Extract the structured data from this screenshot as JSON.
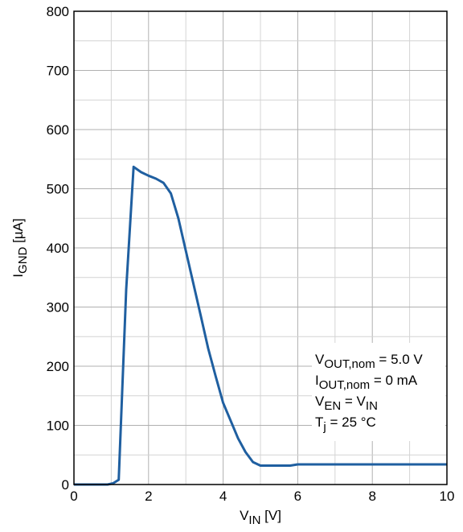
{
  "chart_data": {
    "type": "line",
    "xlabel": {
      "main": "V",
      "sub": "IN",
      "unit": " [V]"
    },
    "ylabel": {
      "main": "I",
      "sub": "GND",
      "unit": " [µA]"
    },
    "xlim": [
      0,
      10
    ],
    "ylim": [
      0,
      800
    ],
    "xticks": [
      0,
      2,
      4,
      6,
      8,
      10
    ],
    "yticks": [
      0,
      100,
      200,
      300,
      400,
      500,
      600,
      700,
      800
    ],
    "grid": true,
    "series": [
      {
        "color": "#1f5fa0",
        "x": [
          0,
          0.9,
          1.05,
          1.2,
          1.4,
          1.6,
          1.8,
          2.0,
          2.2,
          2.4,
          2.6,
          2.8,
          3.0,
          3.2,
          3.4,
          3.6,
          3.8,
          4.0,
          4.2,
          4.4,
          4.6,
          4.8,
          5.0,
          5.5,
          5.8,
          6.0,
          7.0,
          8.0,
          9.0,
          10.0
        ],
        "y": [
          0,
          0,
          2,
          8,
          330,
          537,
          528,
          522,
          517,
          510,
          492,
          450,
          395,
          340,
          285,
          230,
          183,
          138,
          108,
          78,
          55,
          38,
          32,
          32,
          32,
          34,
          34,
          34,
          34,
          34
        ]
      }
    ],
    "annotations": [
      {
        "main": "V",
        "sub": "OUT,nom",
        "rest": " = 5.0 V"
      },
      {
        "main": "I",
        "sub": "OUT,nom",
        "rest": " = 0 mA"
      },
      {
        "main": "V",
        "sub": "EN",
        "rest": " = V",
        "sub2": "IN"
      },
      {
        "main": "T",
        "sub": "j",
        "rest": " = 25 °C"
      }
    ]
  }
}
